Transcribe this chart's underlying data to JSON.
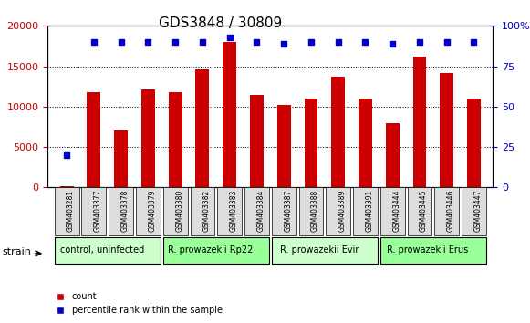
{
  "title": "GDS3848 / 30809",
  "categories": [
    "GSM403281",
    "GSM403377",
    "GSM403378",
    "GSM403379",
    "GSM403380",
    "GSM403382",
    "GSM403383",
    "GSM403384",
    "GSM403387",
    "GSM403388",
    "GSM403389",
    "GSM403391",
    "GSM403444",
    "GSM403445",
    "GSM403446",
    "GSM403447"
  ],
  "bar_values": [
    100,
    11800,
    7000,
    12100,
    11800,
    14600,
    18000,
    11400,
    10200,
    11000,
    13700,
    11000,
    8000,
    16200,
    14200,
    11000
  ],
  "percentile_values": [
    20,
    90,
    90,
    90,
    90,
    90,
    93,
    90,
    89,
    90,
    90,
    90,
    89,
    90,
    90,
    90
  ],
  "bar_color": "#cc0000",
  "percentile_color": "#0000cc",
  "ylim_left": [
    0,
    20000
  ],
  "ylim_right": [
    0,
    100
  ],
  "yticks_left": [
    0,
    5000,
    10000,
    15000,
    20000
  ],
  "yticks_right": [
    0,
    25,
    50,
    75,
    100
  ],
  "ytick_labels_right": [
    "0",
    "25",
    "50",
    "75",
    "100%"
  ],
  "groups": [
    {
      "label": "control, uninfected",
      "start": 0,
      "end": 4,
      "color": "#ccffcc"
    },
    {
      "label": "R. prowazekii Rp22",
      "start": 4,
      "end": 8,
      "color": "#99ff99"
    },
    {
      "label": "R. prowazekii Evir",
      "start": 8,
      "end": 12,
      "color": "#ccffcc"
    },
    {
      "label": "R. prowazekii Erus",
      "start": 12,
      "end": 16,
      "color": "#99ff99"
    }
  ],
  "strain_label": "strain",
  "legend_count": "count",
  "legend_percentile": "percentile rank within the sample",
  "background_color": "#ffffff",
  "plot_bg_color": "#ffffff",
  "grid_color": "#000000",
  "tick_label_color_left": "#cc0000",
  "tick_label_color_right": "#0000cc",
  "xticklabel_bg": "#dddddd"
}
